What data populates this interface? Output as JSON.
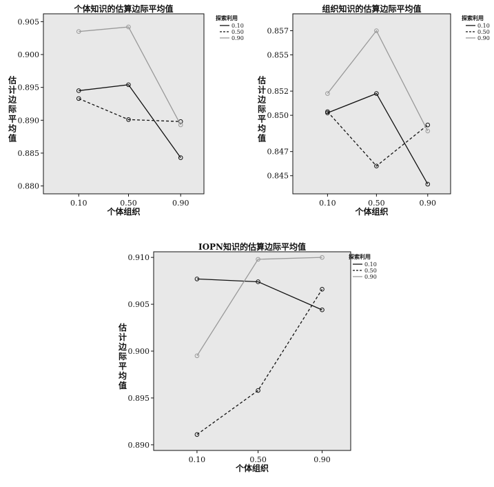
{
  "chart_data": [
    {
      "type": "line",
      "title": "个体知识的估算边际平均值",
      "xlabel": "个体组织",
      "ylabel": "估计边际平均值",
      "categories": [
        "0.10",
        "0.50",
        "0.90"
      ],
      "ylim": [
        0.8788,
        0.9062
      ],
      "yticks": [
        "0.880",
        "0.885",
        "0.890",
        "0.895",
        "0.900",
        "0.905"
      ],
      "legend_title": "探索利用",
      "legend_position": "right-top",
      "grid": false,
      "series": [
        {
          "name": "0.10",
          "values": [
            0.8945,
            0.8954,
            0.8843
          ],
          "color": "#111111",
          "style": "solid"
        },
        {
          "name": "0.50",
          "values": [
            0.8933,
            0.8901,
            0.8898
          ],
          "color": "#111111",
          "style": "dashed"
        },
        {
          "name": "0.90",
          "values": [
            0.9035,
            0.9042,
            0.8893
          ],
          "color": "#999999",
          "style": "solid"
        }
      ]
    },
    {
      "type": "line",
      "title": "组织知识的估算边际平均值",
      "xlabel": "个体组织",
      "ylabel": "估计边际平均值",
      "categories": [
        "0.10",
        "0.50",
        "0.90"
      ],
      "ylim": [
        0.8435,
        0.8584
      ],
      "yticks": [
        "0.845",
        "0.847",
        "0.850",
        "0.852",
        "0.855",
        "0.857"
      ],
      "legend_title": "探索利用",
      "legend_position": "right-top",
      "grid": false,
      "series": [
        {
          "name": "0.10",
          "values": [
            0.8502,
            0.8518,
            0.8443
          ],
          "color": "#111111",
          "style": "solid"
        },
        {
          "name": "0.50",
          "values": [
            0.8503,
            0.8458,
            0.8492
          ],
          "color": "#111111",
          "style": "dashed"
        },
        {
          "name": "0.90",
          "values": [
            0.8518,
            0.857,
            0.8487
          ],
          "color": "#999999",
          "style": "solid"
        }
      ]
    },
    {
      "type": "line",
      "title": "IOPN知识的估算边际平均值",
      "xlabel": "个体组织",
      "ylabel": "估计边际平均值",
      "categories": [
        "0.10",
        "0.50",
        "0.90"
      ],
      "ylim": [
        0.8894,
        0.9106
      ],
      "yticks": [
        "0.890",
        "0.895",
        "0.900",
        "0.905",
        "0.910"
      ],
      "legend_title": "探索利用",
      "legend_position": "right-top",
      "grid": false,
      "series": [
        {
          "name": "0.10",
          "values": [
            0.9077,
            0.9074,
            0.9044
          ],
          "color": "#111111",
          "style": "solid"
        },
        {
          "name": "0.50",
          "values": [
            0.8911,
            0.8958,
            0.9066
          ],
          "color": "#111111",
          "style": "dashed"
        },
        {
          "name": "0.90",
          "values": [
            0.8995,
            0.9098,
            0.91
          ],
          "color": "#999999",
          "style": "solid"
        }
      ]
    }
  ],
  "style": {
    "plot_background": "#e8e8e8",
    "axis_color": "#111111"
  }
}
